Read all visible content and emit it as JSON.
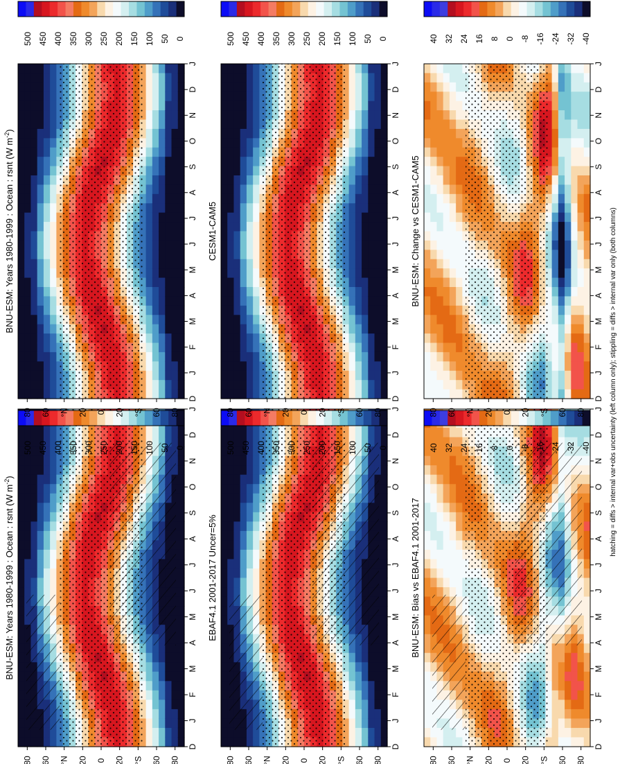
{
  "figure_note": "hatching = diffs > internal var+obs uncertainty (left column only); stippling = diffs > internal var only (both columns)",
  "colors": {
    "abs_scale": [
      "#0c0cf5",
      "#2a2ae8",
      "#b40e1f",
      "#d7161f",
      "#ec2a2c",
      "#f2534a",
      "#f47b63",
      "#e46a14",
      "#ef8a2c",
      "#f3a45a",
      "#f8d9ad",
      "#fdf2e4",
      "#f4fafc",
      "#d4eff0",
      "#a6dde2",
      "#74c3d2",
      "#4f9dc9",
      "#3572b8",
      "#1f4c99",
      "#1a2f7a",
      "#0d0d2a"
    ],
    "diff_scale": [
      "#0c0cf5",
      "#2a2ae8",
      "#3d3de0",
      "#b40e1f",
      "#d7161f",
      "#ec2a2c",
      "#f2534a",
      "#e46a14",
      "#ef8a2c",
      "#f3a45a",
      "#f8d9ad",
      "#fdf2e4",
      "#f4fafc",
      "#d4eff0",
      "#a6dde2",
      "#74c3d2",
      "#4f9dc9",
      "#3572b8",
      "#1f4c99",
      "#1a2f7a",
      "#0d0d2a"
    ]
  },
  "chart_data": [
    {
      "type": "heatmap",
      "title": "BNU-ESM: Years 1980-1999 : Ocean : rsnt (W m",
      "units_sup": "-2",
      "units_close": ")",
      "xticks": [
        "D",
        "J",
        "F",
        "M",
        "A",
        "M",
        "J",
        "J",
        "A",
        "S",
        "O",
        "N",
        "D",
        "J"
      ],
      "yticks": [
        "80",
        "60",
        "°N",
        "20",
        "0",
        "20",
        "°S",
        "60",
        "80"
      ],
      "colorbar_ticks": [
        "500",
        "450",
        "400",
        "350",
        "300",
        "250",
        "200",
        "150",
        "100",
        "50",
        "0"
      ],
      "value_range": [
        0,
        500
      ],
      "overlay": [
        "stippling",
        "hatching"
      ]
    },
    {
      "type": "heatmap",
      "title": "BNU-ESM: Years 1980-1999 : Ocean : rsnt (W m",
      "units_sup": "-2",
      "units_close": ")",
      "xticks": [
        "D",
        "J",
        "F",
        "M",
        "A",
        "M",
        "J",
        "J",
        "A",
        "S",
        "O",
        "N",
        "D",
        "J"
      ],
      "yticks": [
        "80",
        "60",
        "°N",
        "20",
        "0",
        "20",
        "°S",
        "60",
        "80"
      ],
      "colorbar_ticks": [
        "500",
        "450",
        "400",
        "350",
        "300",
        "250",
        "200",
        "150",
        "100",
        "50",
        "0"
      ],
      "value_range": [
        0,
        500
      ],
      "overlay": [
        "stippling"
      ]
    },
    {
      "type": "heatmap",
      "title": "EBAF4.1 2001-2017 Uncer=5%",
      "xticks": [
        "D",
        "J",
        "F",
        "M",
        "A",
        "M",
        "J",
        "J",
        "A",
        "S",
        "O",
        "N",
        "D",
        "J"
      ],
      "yticks": [
        "80",
        "60",
        "°N",
        "20",
        "0",
        "20",
        "°S",
        "60",
        "80"
      ],
      "colorbar_ticks": [
        "500",
        "450",
        "400",
        "350",
        "300",
        "250",
        "200",
        "150",
        "100",
        "50",
        "0"
      ],
      "value_range": [
        0,
        500
      ],
      "overlay": [
        "stippling",
        "hatching"
      ]
    },
    {
      "type": "heatmap",
      "title": "CESM1-CAM5",
      "xticks": [
        "D",
        "J",
        "F",
        "M",
        "A",
        "M",
        "J",
        "J",
        "A",
        "S",
        "O",
        "N",
        "D",
        "J"
      ],
      "yticks": [
        "80",
        "60",
        "°N",
        "20",
        "0",
        "20",
        "°S",
        "60",
        "80"
      ],
      "colorbar_ticks": [
        "500",
        "450",
        "400",
        "350",
        "300",
        "250",
        "200",
        "150",
        "100",
        "50",
        "0"
      ],
      "value_range": [
        0,
        500
      ],
      "overlay": [
        "stippling"
      ]
    },
    {
      "type": "heatmap",
      "title": "BNU-ESM: Bias vs EBAF4.1 2001-2017",
      "xticks": [
        "D",
        "J",
        "F",
        "M",
        "A",
        "M",
        "J",
        "J",
        "A",
        "S",
        "O",
        "N",
        "D",
        "J"
      ],
      "yticks": [
        "80",
        "60",
        "°N",
        "20",
        "0",
        "20",
        "°S",
        "60",
        "80"
      ],
      "colorbar_ticks": [
        "40",
        "32",
        "24",
        "16",
        "8",
        "0",
        "-8",
        "-16",
        "-24",
        "-32",
        "-40"
      ],
      "value_range": [
        -40,
        40
      ],
      "overlay": [
        "stippling",
        "hatching"
      ]
    },
    {
      "type": "heatmap",
      "title": "BNU-ESM: Change vs CESM1-CAM5",
      "xticks": [
        "D",
        "J",
        "F",
        "M",
        "A",
        "M",
        "J",
        "J",
        "A",
        "S",
        "O",
        "N",
        "D",
        "J"
      ],
      "yticks": [
        "80",
        "60",
        "°N",
        "20",
        "0",
        "20",
        "°S",
        "60",
        "80"
      ],
      "colorbar_ticks": [
        "40",
        "32",
        "24",
        "16",
        "8",
        "0",
        "-8",
        "-16",
        "-24",
        "-32",
        "-40"
      ],
      "value_range": [
        -40,
        40
      ],
      "overlay": [
        "stippling"
      ]
    }
  ]
}
